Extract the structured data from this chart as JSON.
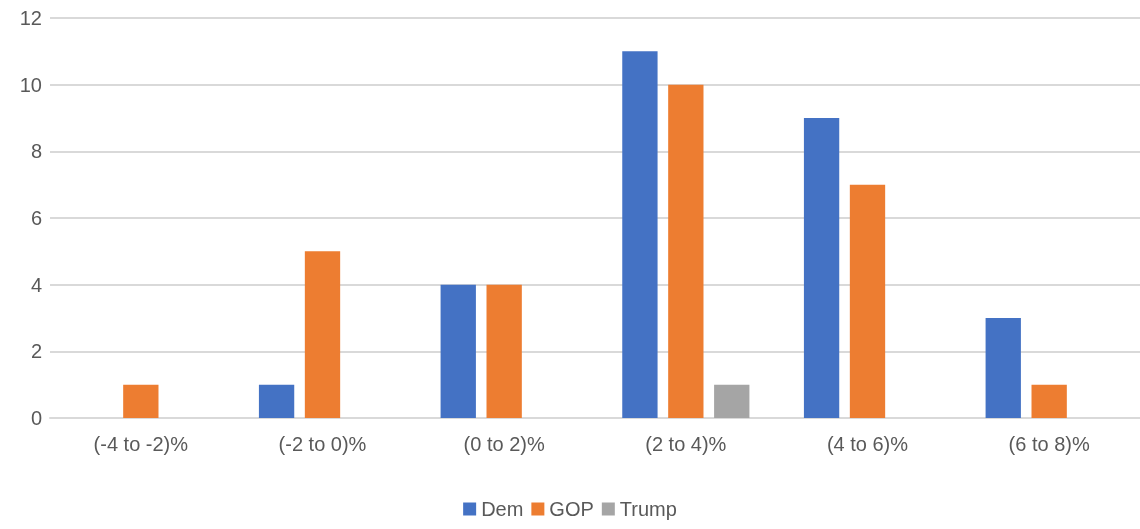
{
  "chart_data": {
    "type": "bar",
    "categories": [
      "(-4 to -2)%",
      "(-2 to 0)%",
      "(0 to 2)%",
      "(2 to 4)%",
      "(4 to 6)%",
      "(6 to 8)%"
    ],
    "series": [
      {
        "name": "Dem",
        "color": "#4472c4",
        "values": [
          0,
          1,
          4,
          11,
          9,
          3
        ]
      },
      {
        "name": "GOP",
        "color": "#ed7d31",
        "values": [
          1,
          5,
          4,
          10,
          7,
          1
        ]
      },
      {
        "name": "Trump",
        "color": "#a5a5a5",
        "values": [
          0,
          0,
          0,
          1,
          0,
          0
        ]
      }
    ],
    "ylim": [
      0,
      12
    ],
    "yticks": [
      0,
      2,
      4,
      6,
      8,
      10,
      12
    ],
    "grid": "y",
    "legend": "bottom"
  }
}
